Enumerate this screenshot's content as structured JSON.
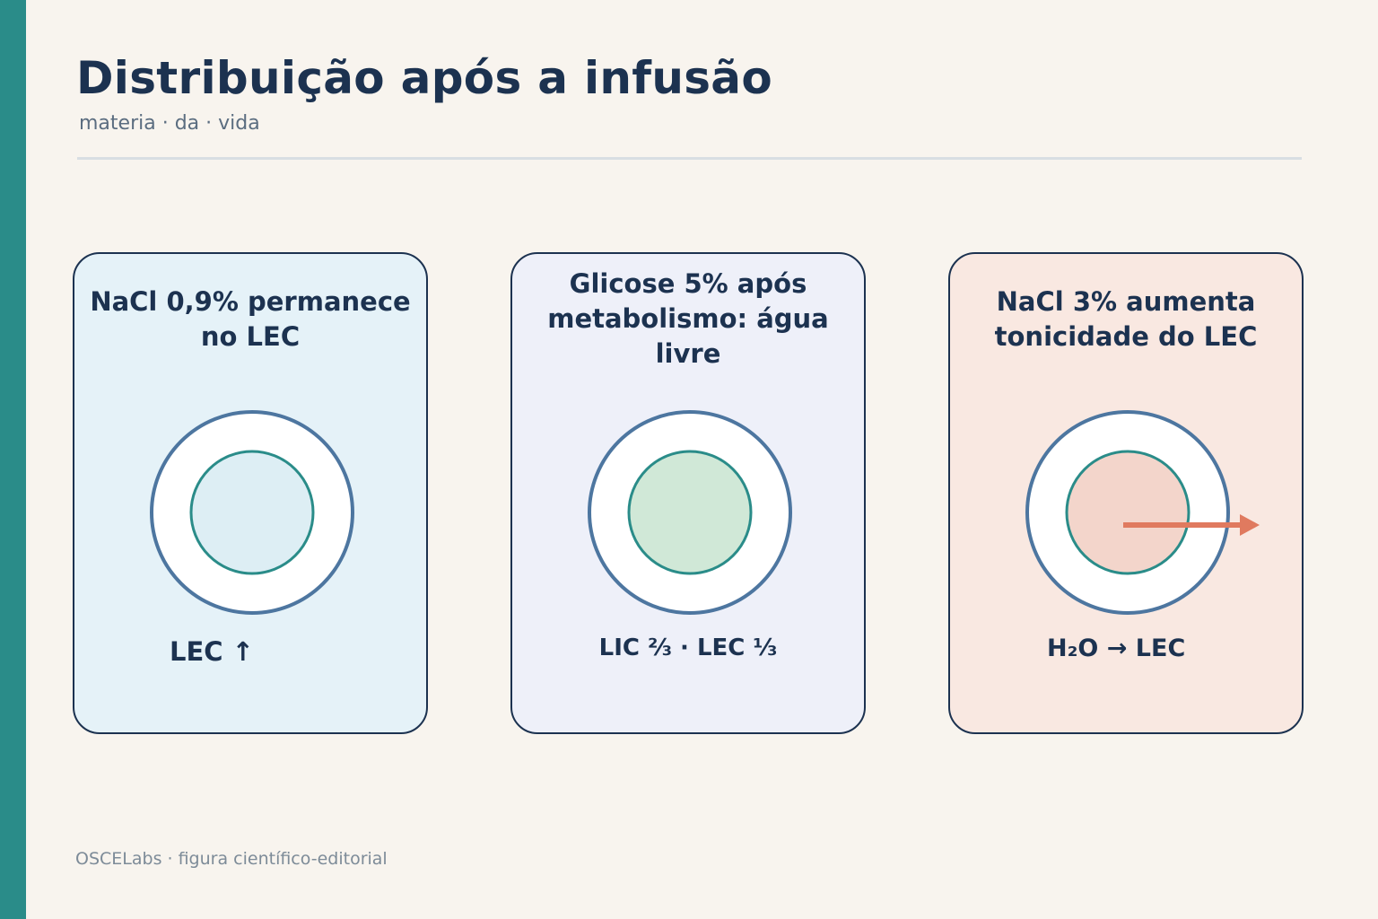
{
  "header": {
    "title": "Distribuição após a infusão",
    "subtitle": "materia · da · vida"
  },
  "panels": [
    {
      "title": "NaCl 0,9% permanece no LEC",
      "label": "LEC ↑",
      "background_color": "#e5f2f8",
      "inner_fill": "#ddeef4",
      "arrow": false
    },
    {
      "title": "Glicose 5% após metabolismo: água livre",
      "label": "LIC ⅔ · LEC ⅓",
      "background_color": "#eef0f9",
      "inner_fill": "#d0e8d7",
      "arrow": false
    },
    {
      "title": "NaCl 3% aumenta tonicidade do LEC",
      "label": "H₂O → LEC",
      "background_color": "#f9e8e1",
      "inner_fill": "#f3d5cb",
      "arrow": true
    }
  ],
  "colors": {
    "accent": "#2a8c89",
    "outer_membrane": "#4d76a0",
    "inner_membrane": "#2a8c89",
    "arrow": "#e07a5f",
    "text": "#1c3250"
  },
  "footer": {
    "text": "OSCELabs · figura científico-editorial"
  }
}
